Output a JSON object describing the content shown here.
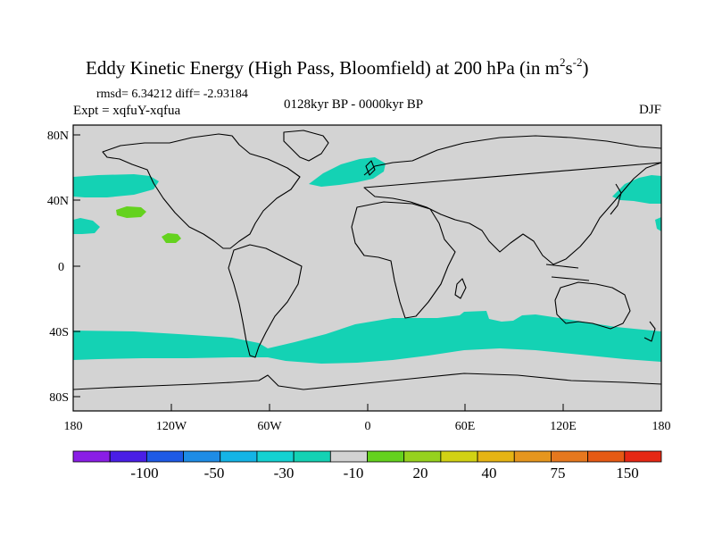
{
  "title": {
    "main": "Eddy Kinetic Energy (High Pass, Bloomfield) at 200 hPa (in m",
    "sup1": "2",
    "s": "s",
    "sup2": "-2",
    "close": ")"
  },
  "stats": "rmsd= 6.34212 diff= -2.93184",
  "experiment": "Expt = xqfuY-xqfua",
  "period": "0128kyr BP - 0000kyr BP",
  "season": "DJF",
  "lat_ticks": [
    "80N",
    "40N",
    "0",
    "40S",
    "80S"
  ],
  "lon_ticks": [
    "180",
    "120W",
    "60W",
    "0",
    "60E",
    "120E",
    "180"
  ],
  "colorbar": {
    "labels": [
      "-100",
      "-50",
      "-30",
      "-10",
      "20",
      "40",
      "75",
      "150"
    ],
    "colors": [
      "#8a1ee6",
      "#4a1ee6",
      "#1e5ae6",
      "#1e8ce6",
      "#14b4e6",
      "#14d2d2",
      "#14d2b4",
      "#d3d3d3",
      "#64d21e",
      "#96d21e",
      "#d2d214",
      "#e6b414",
      "#e6961e",
      "#e6781e",
      "#e65a14",
      "#e62814"
    ]
  },
  "map_colors": {
    "background": "#d3d3d3",
    "negative": "#14d2b4",
    "positive": "#64d21e",
    "coast": "#000000"
  }
}
